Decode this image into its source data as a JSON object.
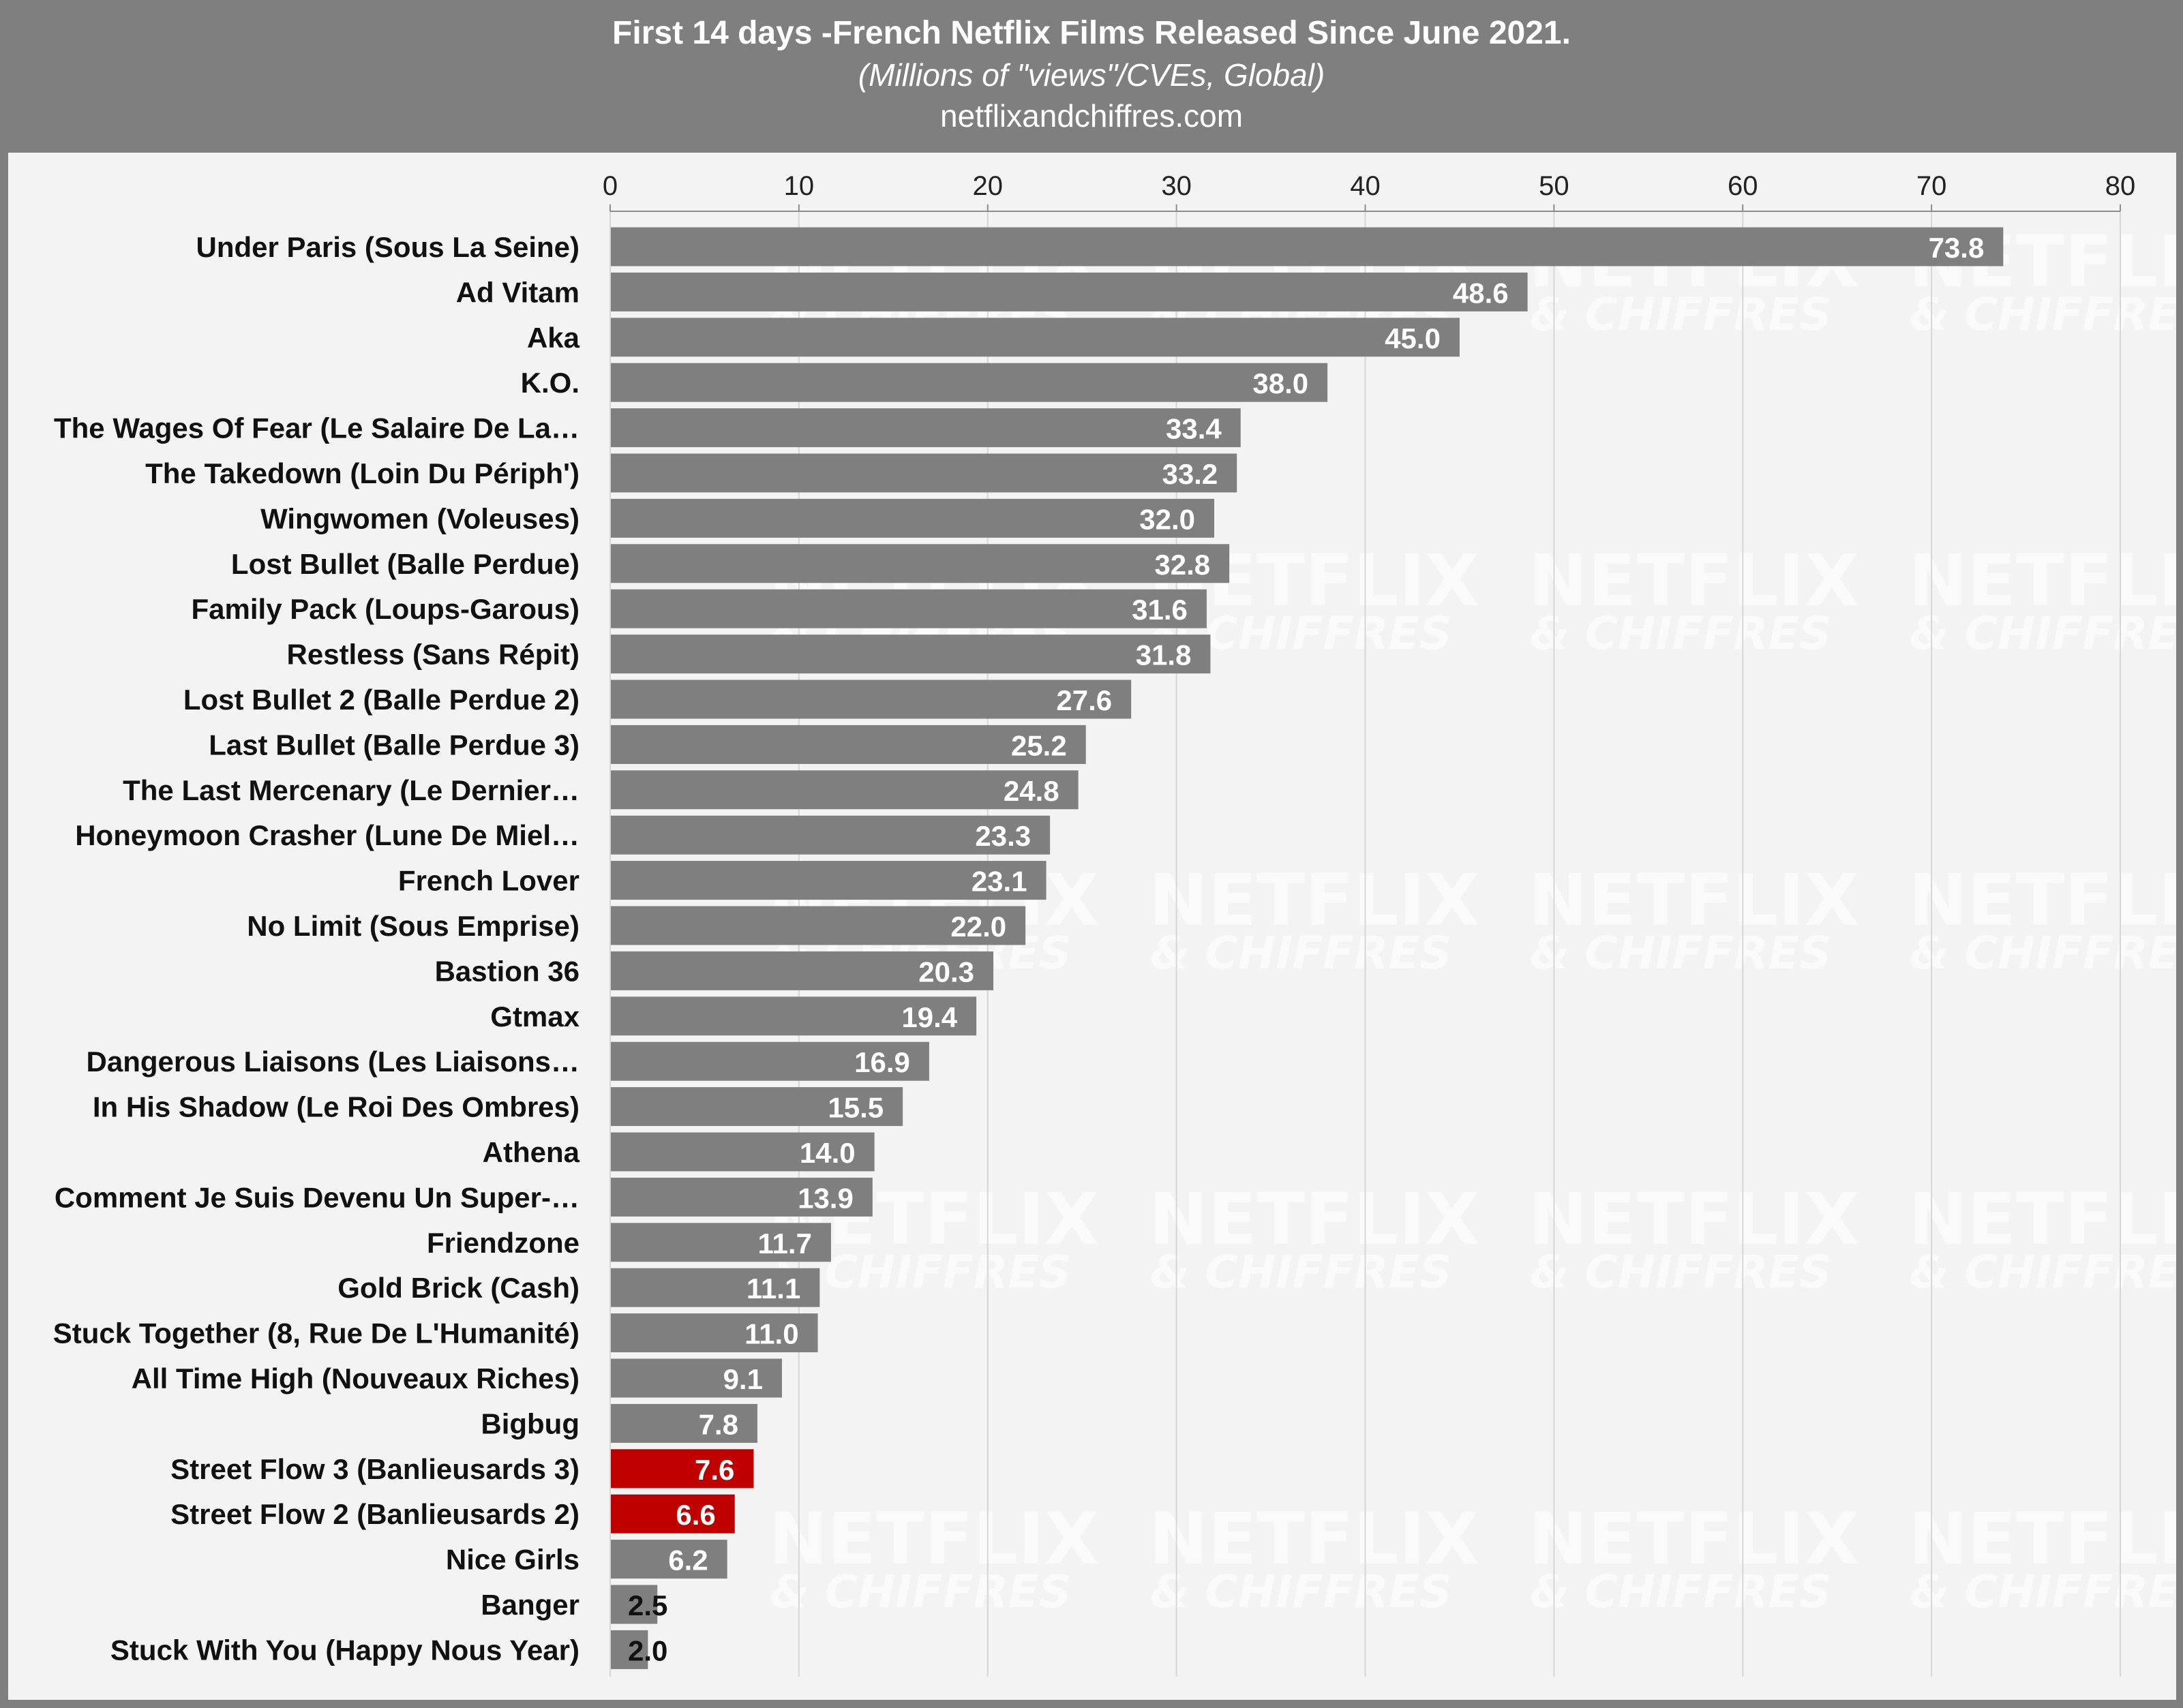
{
  "header": {
    "title": "First 14 days -French Netflix Films Released Since June 2021.",
    "subtitle": "(Millions of \"views\"/CVEs, Global)",
    "source": "netflixandchiffres.com"
  },
  "watermark": {
    "line1": "NETFLIX",
    "line2": "& CHIFFRES"
  },
  "chart_data": {
    "type": "bar",
    "orientation": "horizontal",
    "title": "First 14 days -French Netflix Films Released Since June 2021.",
    "subtitle": "(Millions of \"views\"/CVEs, Global)",
    "xlim": [
      0,
      80
    ],
    "ticks": [
      0,
      10,
      20,
      30,
      40,
      50,
      60,
      70,
      80
    ],
    "axis_position": "top",
    "grid": true,
    "colors": {
      "default": "#7f7f7f",
      "highlight": "#c00000"
    },
    "categories": [
      "Under Paris (Sous La Seine)",
      "Ad Vitam",
      "Aka",
      "K.O.",
      "The Wages Of Fear (Le Salaire De La…",
      "The Takedown (Loin Du Périph')",
      "Wingwomen (Voleuses)",
      "Lost Bullet (Balle Perdue)",
      "Family Pack (Loups-Garous)",
      "Restless (Sans Répit)",
      "Lost Bullet 2 (Balle Perdue 2)",
      "Last Bullet (Balle Perdue 3)",
      "The Last Mercenary (Le Dernier…",
      "Honeymoon Crasher (Lune De Miel…",
      "French Lover",
      "No Limit (Sous Emprise)",
      "Bastion 36",
      "Gtmax",
      "Dangerous Liaisons (Les Liaisons…",
      "In His Shadow (Le Roi Des Ombres)",
      "Athena",
      "Comment Je Suis Devenu Un Super-…",
      "Friendzone",
      "Gold Brick (Cash)",
      "Stuck Together (8, Rue De L'Humanité)",
      "All Time High (Nouveaux Riches)",
      "Bigbug",
      "Street Flow 3 (Banlieusards 3)",
      "Street Flow 2 (Banlieusards 2)",
      "Nice Girls",
      "Banger",
      "Stuck With You (Happy Nous Year)"
    ],
    "values": [
      73.8,
      48.6,
      45.0,
      38.0,
      33.4,
      33.2,
      32.0,
      32.8,
      31.6,
      31.8,
      27.6,
      25.2,
      24.8,
      23.3,
      23.1,
      22.0,
      20.3,
      19.4,
      16.9,
      15.5,
      14.0,
      13.9,
      11.7,
      11.1,
      11.0,
      9.1,
      7.8,
      7.6,
      6.6,
      6.2,
      2.5,
      2.0
    ],
    "highlighted": [
      "Street Flow 3 (Banlieusards 3)",
      "Street Flow 2 (Banlieusards 2)"
    ]
  }
}
